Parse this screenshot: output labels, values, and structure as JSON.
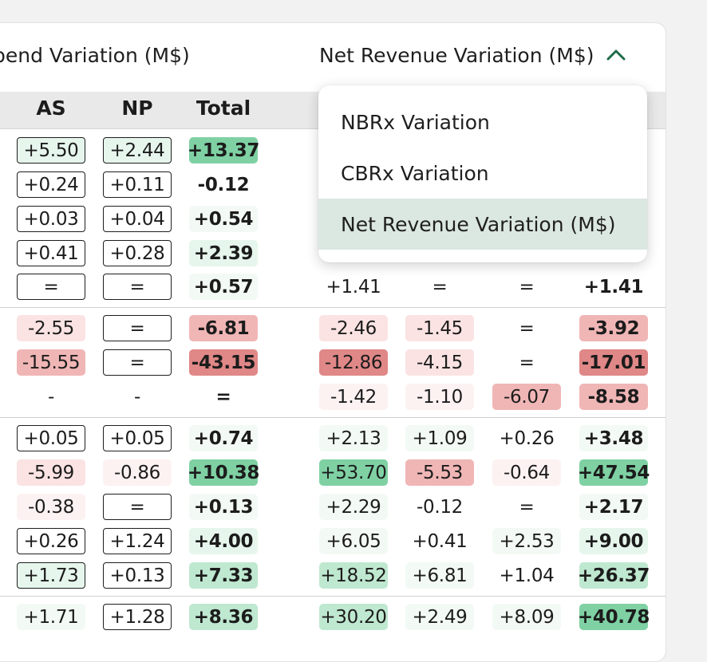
{
  "header": {
    "spend_title": "pend Variation (M$)",
    "revenue_title": "Net Revenue Variation (M$)",
    "columns": [
      "AS",
      "NP",
      "Total"
    ]
  },
  "dropdown": {
    "items": [
      "NBRx Variation",
      "CBRx Variation",
      "Net Revenue Variation (M$)"
    ],
    "selected": "Net Revenue Variation (M$)"
  },
  "colors": {
    "green_strong": "#7fd1a3",
    "green_medium": "#bfe8d0",
    "green_light": "#e6f6ec",
    "green_faint": "#f3faf5",
    "red_strong": "#e08787",
    "red_medium": "#f0b6b6",
    "red_light": "#fbe3e3",
    "red_faint": "#fdf2f2",
    "menu_selected": "#dbe7e1"
  },
  "spend_rows": [
    [
      {
        "v": "+5.50",
        "s": "og"
      },
      {
        "v": "+2.44",
        "s": "og"
      },
      {
        "v": "+13.37",
        "s": "g3"
      }
    ],
    [
      {
        "v": "+0.24",
        "s": "o"
      },
      {
        "v": "+0.11",
        "s": "o"
      },
      {
        "v": "-0.12",
        "s": "n"
      }
    ],
    [
      {
        "v": "+0.03",
        "s": "o"
      },
      {
        "v": "+0.04",
        "s": "o"
      },
      {
        "v": "+0.54",
        "s": "g0"
      }
    ],
    [
      {
        "v": "+0.41",
        "s": "o"
      },
      {
        "v": "+0.28",
        "s": "o"
      },
      {
        "v": "+2.39",
        "s": "g1"
      }
    ],
    [
      {
        "v": "=",
        "s": "o"
      },
      {
        "v": "=",
        "s": "o"
      },
      {
        "v": "+0.57",
        "s": "g0"
      }
    ],
    [
      {
        "v": "-2.55",
        "s": "r1"
      },
      {
        "v": "=",
        "s": "o"
      },
      {
        "v": "-6.81",
        "s": "r2"
      }
    ],
    [
      {
        "v": "-15.55",
        "s": "r2"
      },
      {
        "v": "=",
        "s": "o"
      },
      {
        "v": "-43.15",
        "s": "r3"
      }
    ],
    [
      {
        "v": "-",
        "s": "n"
      },
      {
        "v": "-",
        "s": "n"
      },
      {
        "v": "=",
        "s": "n"
      }
    ],
    [
      {
        "v": "+0.05",
        "s": "o"
      },
      {
        "v": "+0.05",
        "s": "o"
      },
      {
        "v": "+0.74",
        "s": "g0"
      }
    ],
    [
      {
        "v": "-5.99",
        "s": "r1"
      },
      {
        "v": "-0.86",
        "s": "r0"
      },
      {
        "v": "+10.38",
        "s": "g3"
      }
    ],
    [
      {
        "v": "-0.38",
        "s": "r0"
      },
      {
        "v": "=",
        "s": "o"
      },
      {
        "v": "+0.13",
        "s": "g0"
      }
    ],
    [
      {
        "v": "+0.26",
        "s": "o"
      },
      {
        "v": "+1.24",
        "s": "o"
      },
      {
        "v": "+4.00",
        "s": "g1"
      }
    ],
    [
      {
        "v": "+1.73",
        "s": "og"
      },
      {
        "v": "+0.13",
        "s": "o"
      },
      {
        "v": "+7.33",
        "s": "g2"
      }
    ],
    [
      {
        "v": "+1.71",
        "s": "g0"
      },
      {
        "v": "+1.28",
        "s": "o"
      },
      {
        "v": "+8.36",
        "s": "g2"
      }
    ]
  ],
  "revenue_rows": [
    [
      {
        "v": "+1.41",
        "s": "n"
      },
      {
        "v": "=",
        "s": "n"
      },
      {
        "v": "=",
        "s": "n"
      },
      {
        "v": "+1.41",
        "s": "n"
      }
    ],
    [
      {
        "v": "-2.46",
        "s": "r1"
      },
      {
        "v": "-1.45",
        "s": "r1"
      },
      {
        "v": "=",
        "s": "n"
      },
      {
        "v": "-3.92",
        "s": "r2"
      }
    ],
    [
      {
        "v": "-12.86",
        "s": "r3"
      },
      {
        "v": "-4.15",
        "s": "r1"
      },
      {
        "v": "=",
        "s": "n"
      },
      {
        "v": "-17.01",
        "s": "r3"
      }
    ],
    [
      {
        "v": "-1.42",
        "s": "r0"
      },
      {
        "v": "-1.10",
        "s": "r0"
      },
      {
        "v": "-6.07",
        "s": "r2"
      },
      {
        "v": "-8.58",
        "s": "r2"
      }
    ],
    [
      {
        "v": "+2.13",
        "s": "g0"
      },
      {
        "v": "+1.09",
        "s": "g0"
      },
      {
        "v": "+0.26",
        "s": "n"
      },
      {
        "v": "+3.48",
        "s": "g0"
      }
    ],
    [
      {
        "v": "+53.70",
        "s": "g3"
      },
      {
        "v": "-5.53",
        "s": "r2"
      },
      {
        "v": "-0.64",
        "s": "r0"
      },
      {
        "v": "+47.54",
        "s": "g3"
      }
    ],
    [
      {
        "v": "+2.29",
        "s": "g0"
      },
      {
        "v": "-0.12",
        "s": "n"
      },
      {
        "v": "=",
        "s": "n"
      },
      {
        "v": "+2.17",
        "s": "g0"
      }
    ],
    [
      {
        "v": "+6.05",
        "s": "g0"
      },
      {
        "v": "+0.41",
        "s": "n"
      },
      {
        "v": "+2.53",
        "s": "g0"
      },
      {
        "v": "+9.00",
        "s": "g1"
      }
    ],
    [
      {
        "v": "+18.52",
        "s": "g2"
      },
      {
        "v": "+6.81",
        "s": "g0"
      },
      {
        "v": "+1.04",
        "s": "n"
      },
      {
        "v": "+26.37",
        "s": "g2"
      }
    ],
    [
      {
        "v": "+30.20",
        "s": "g2"
      },
      {
        "v": "+2.49",
        "s": "g0"
      },
      {
        "v": "+8.09",
        "s": "g0"
      },
      {
        "v": "+40.78",
        "s": "g3"
      }
    ]
  ]
}
